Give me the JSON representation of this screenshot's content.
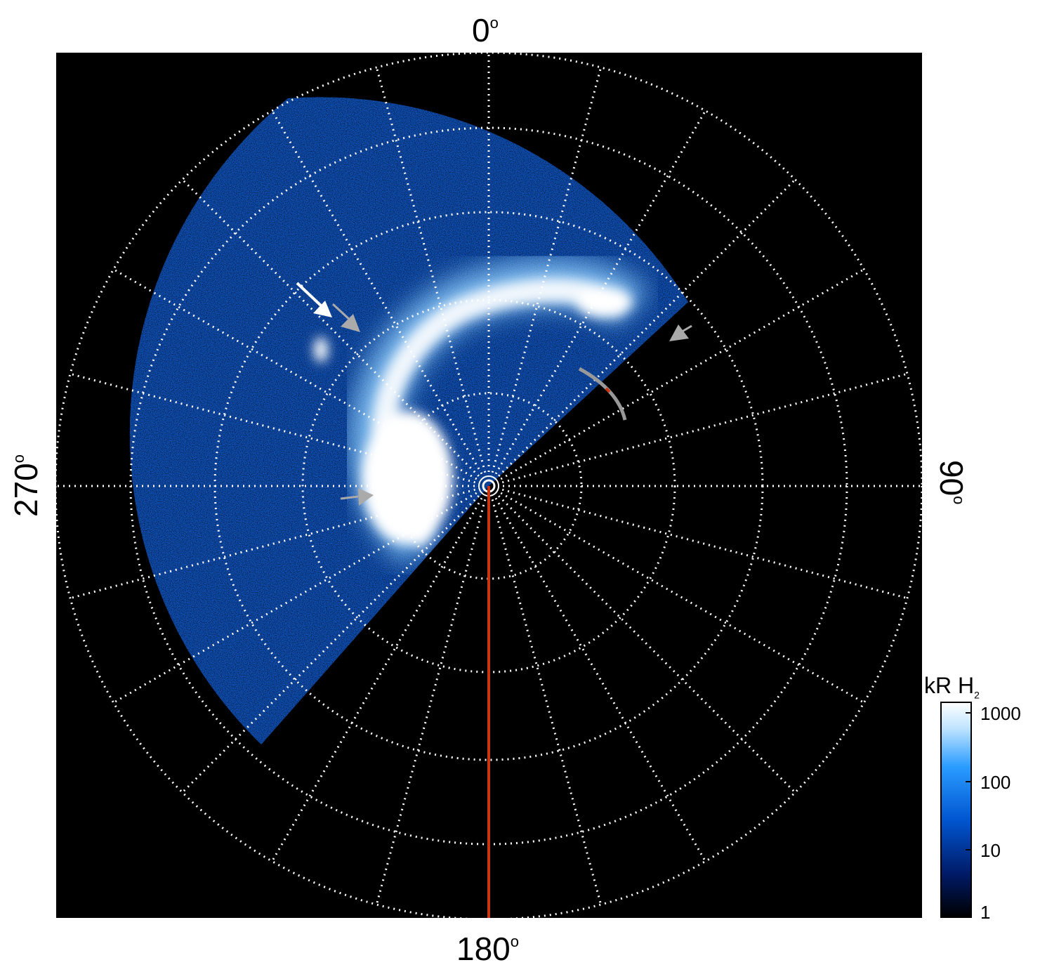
{
  "angle_labels": {
    "top": "0",
    "right": "90",
    "bottom": "180",
    "left": "270",
    "degree_symbol": "o"
  },
  "colorbar": {
    "title": "kR H",
    "title_subscript": "2",
    "ticks": [
      "1000",
      "100",
      "10",
      "1"
    ],
    "colors": [
      "#000000",
      "#001a66",
      "#0055d0",
      "#2a9cff",
      "#bfe4ff",
      "#ffffff"
    ]
  },
  "colors": {
    "background": "#000000",
    "grid": "#ffffff",
    "meridian_line": "#cc3311",
    "pointer_white": "#ffffff",
    "pointer_gray": "#aaaaaa"
  },
  "icons": [
    "white-arrow-icon",
    "gray-arrow-icon",
    "gray-arc-marker-icon"
  ]
}
